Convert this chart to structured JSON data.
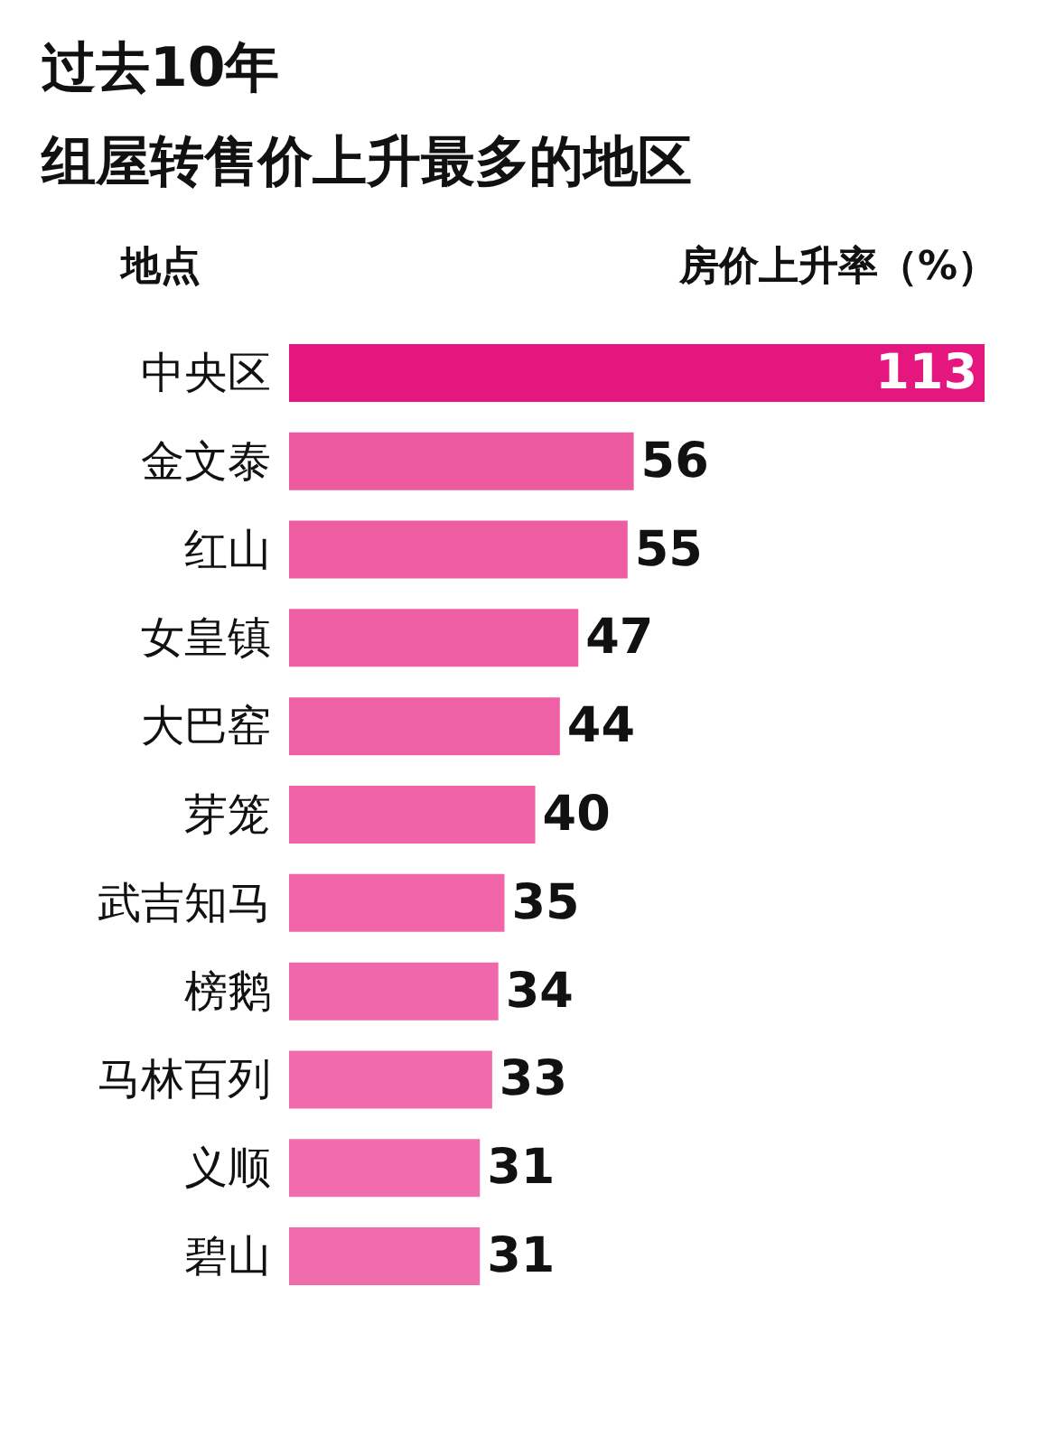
{
  "chart_data": {
    "type": "bar",
    "orientation": "horizontal",
    "title": "过去10年",
    "subtitle": "组屋转售价上升最多的地区",
    "ylabel": "地点",
    "xlabel": "房价上升率（%）",
    "categories": [
      "中央区",
      "金文泰",
      "红山",
      "女皇镇",
      "大巴窑",
      "芽笼",
      "武吉知马",
      "榜鹅",
      "马林百列",
      "义顺",
      "碧山"
    ],
    "values": [
      113,
      56,
      55,
      47,
      44,
      40,
      35,
      34,
      33,
      31,
      31
    ],
    "colors": [
      "#e5177e",
      "#ee5aa0",
      "#ee5ca2",
      "#ef5fa4",
      "#ef61a6",
      "#f063a7",
      "#f066a9",
      "#f068ab",
      "#f06aac",
      "#f16cad",
      "#f16cad"
    ],
    "data_labels": true
  }
}
